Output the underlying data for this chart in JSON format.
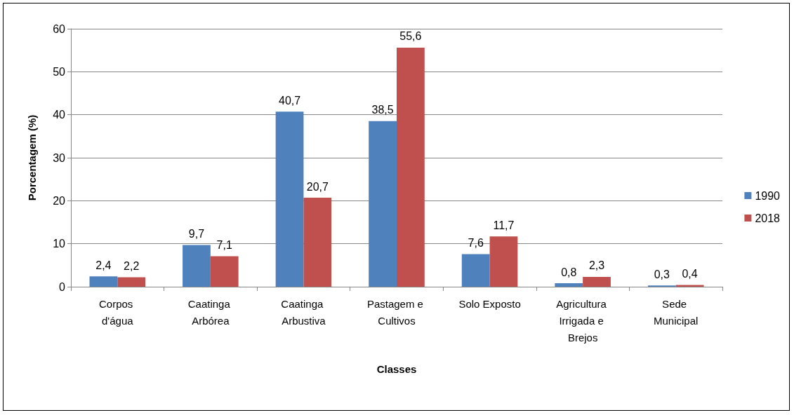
{
  "chart_data": {
    "type": "bar",
    "xlabel": "Classes",
    "ylabel": "Porcentagem (%)",
    "categories": [
      "Corpos d'água",
      "Caatinga Arbórea",
      "Caatinga Arbustiva",
      "Pastagem e Cultivos",
      "Solo Exposto",
      "Agricultura Irrigada e Brejos",
      "Sede Municipal"
    ],
    "series": [
      {
        "name": "1990",
        "color": "#4f81bd",
        "values": [
          2.4,
          9.7,
          40.7,
          38.5,
          7.6,
          0.8,
          0.3
        ],
        "value_labels": [
          "2,4",
          "9,7",
          "40,7",
          "38,5",
          "7,6",
          "0,8",
          "0,3"
        ]
      },
      {
        "name": "2018",
        "color": "#c0504d",
        "values": [
          2.2,
          7.1,
          20.7,
          55.6,
          11.7,
          2.3,
          0.4
        ],
        "value_labels": [
          "2,2",
          "7,1",
          "20,7",
          "55,6",
          "11,7",
          "2,3",
          "0,4"
        ]
      }
    ],
    "ylim": [
      0,
      60
    ],
    "yticks": [
      0,
      10,
      20,
      30,
      40,
      50,
      60
    ],
    "grid": "y",
    "legend": "right"
  }
}
